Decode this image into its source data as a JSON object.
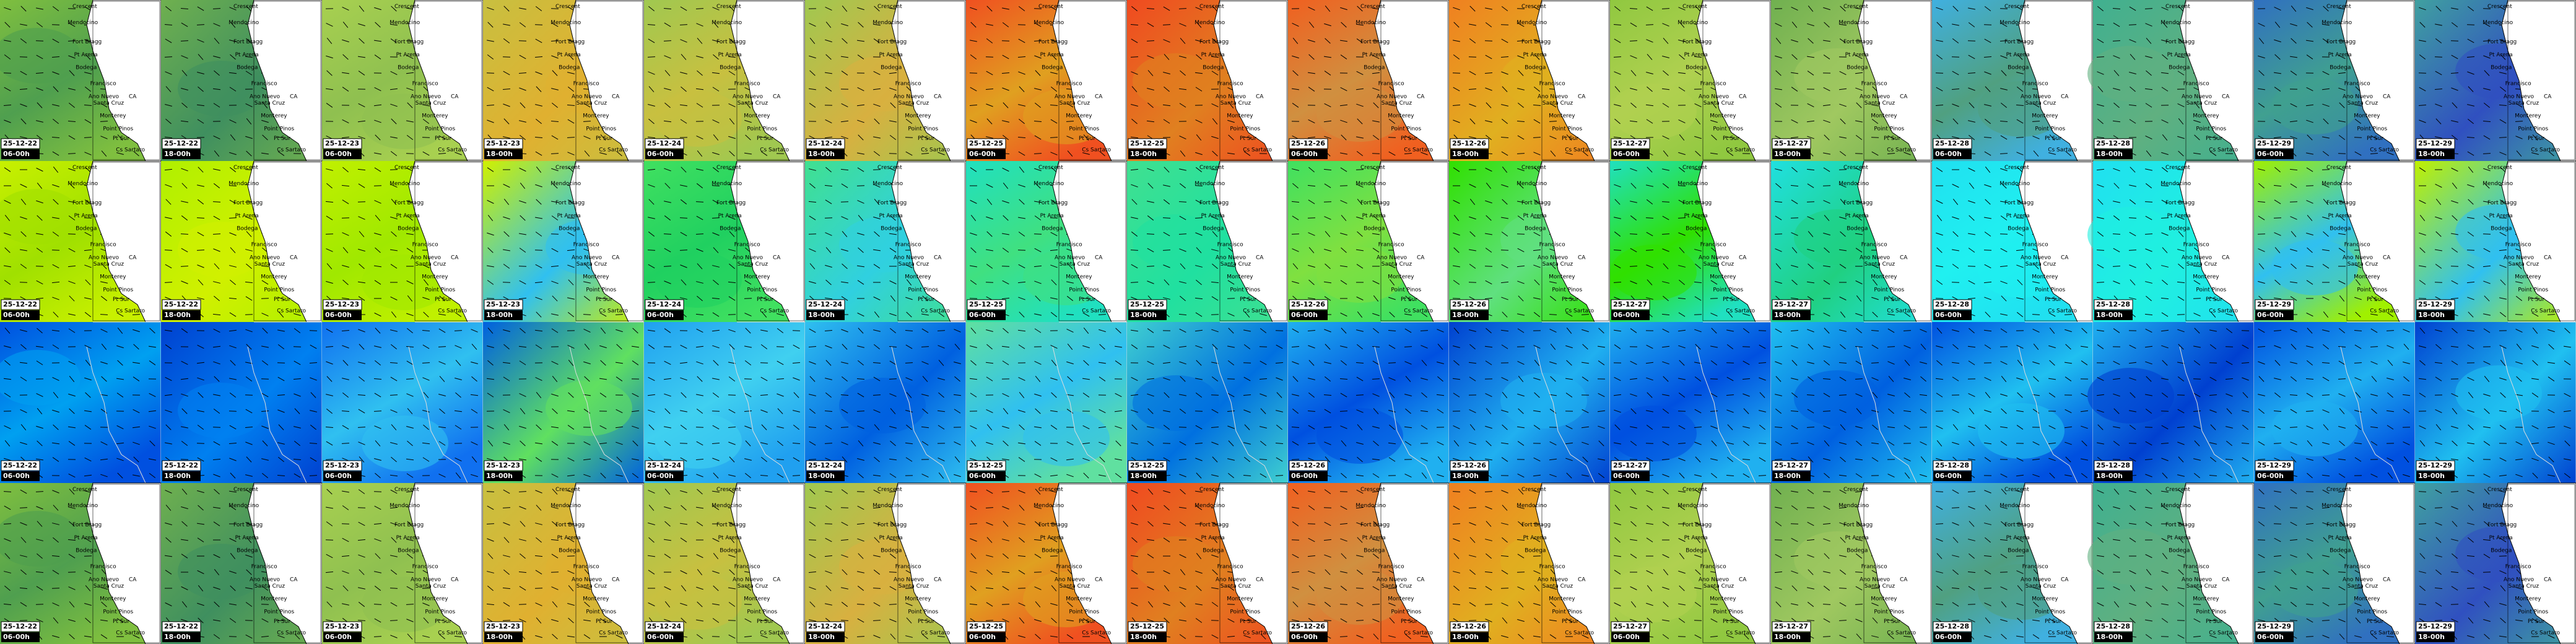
{
  "columns": [
    {
      "date": "25-12-22",
      "time": "06-00h"
    },
    {
      "date": "25-12-22",
      "time": "18-00h"
    },
    {
      "date": "25-12-23",
      "time": "06-00h"
    },
    {
      "date": "25-12-23",
      "time": "18-00h"
    },
    {
      "date": "25-12-24",
      "time": "06-00h"
    },
    {
      "date": "25-12-24",
      "time": "18-00h"
    },
    {
      "date": "25-12-25",
      "time": "06-00h"
    },
    {
      "date": "25-12-25",
      "time": "18-00h"
    },
    {
      "date": "25-12-26",
      "time": "06-00h"
    },
    {
      "date": "25-12-26",
      "time": "18-00h"
    },
    {
      "date": "25-12-27",
      "time": "06-00h"
    },
    {
      "date": "25-12-27",
      "time": "18-00h"
    },
    {
      "date": "25-12-28",
      "time": "06-00h"
    },
    {
      "date": "25-12-28",
      "time": "18-00h"
    },
    {
      "date": "25-12-29",
      "time": "06-00h"
    },
    {
      "date": "25-12-29",
      "time": "18-00h"
    }
  ],
  "places": [
    "Crescent",
    "Mendocino",
    "Fort Bragg",
    "Pt Arena",
    "Bodega",
    "Francisco",
    "Ano Nuevo",
    "Santa Cruz",
    "CA",
    "Monterey",
    "Point Pinos",
    "Pt Sur",
    "Cs Sartaro"
  ]
}
